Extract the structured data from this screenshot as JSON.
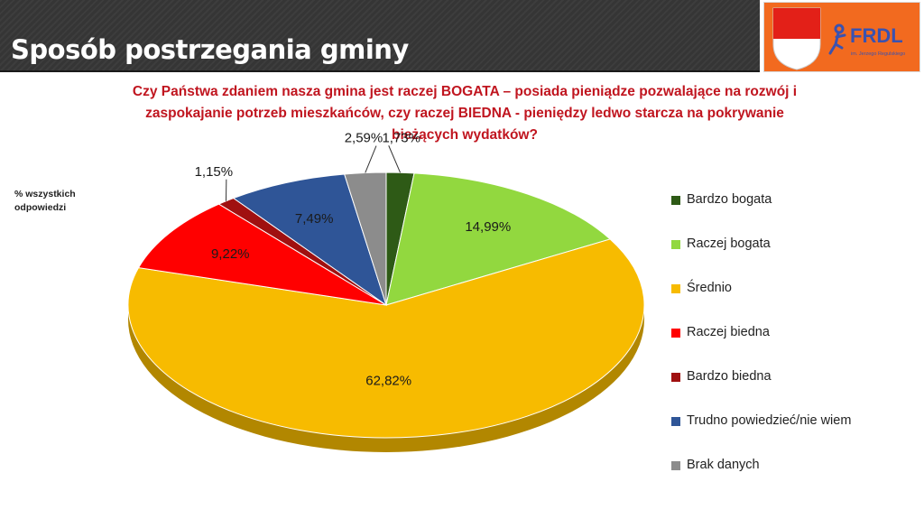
{
  "header": {
    "title": "Sposób postrzegania gminy"
  },
  "logo": {
    "text": "FRDL",
    "subtext": "im. Jerzego Regulskiego"
  },
  "question": {
    "lines": [
      "Czy Państwa zdaniem nasza gmina jest raczej BOGATA – posiada pieniądze pozwalające na rozwój i",
      "zaspokajanie potrzeb mieszkańców, czy raczej BIEDNA - pieniędzy ledwo starcza na pokrywanie",
      "bieżących wydatków?"
    ]
  },
  "chart_data": {
    "type": "pie",
    "ylabel_lines": [
      "% wszystkich",
      "odpowiedzi"
    ],
    "legend_position": "right",
    "slices": [
      {
        "label": "Bardzo bogata",
        "value": 1.73,
        "display": "1,73%",
        "color": "#2e5a16"
      },
      {
        "label": "Raczej bogata",
        "value": 14.99,
        "display": "14,99%",
        "color": "#92d83f"
      },
      {
        "label": "Średnio",
        "value": 62.82,
        "display": "62,82%",
        "color": "#f7bb00"
      },
      {
        "label": "Raczej biedna",
        "value": 9.22,
        "display": "9,22%",
        "color": "#ff0000"
      },
      {
        "label": "Bardzo biedna",
        "value": 1.15,
        "display": "1,15%",
        "color": "#a01010"
      },
      {
        "label": "Trudno powiedzieć/nie wiem",
        "value": 7.49,
        "display": "7,49%",
        "color": "#2f5597"
      },
      {
        "label": "Brak danych",
        "value": 2.59,
        "display": "2,59%",
        "color": "#8c8c8c"
      }
    ]
  }
}
